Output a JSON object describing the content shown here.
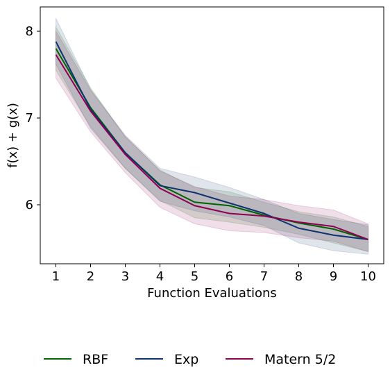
{
  "chart_data": {
    "type": "line",
    "xlabel": "Function Evaluations",
    "ylabel": "f(x) + g(x)",
    "x": [
      1,
      2,
      3,
      4,
      5,
      6,
      7,
      8,
      9,
      10
    ],
    "xticks": [
      "1",
      "2",
      "3",
      "4",
      "5",
      "6",
      "7",
      "8",
      "9",
      "10"
    ],
    "yticks": [
      "6",
      "7",
      "8"
    ],
    "ytick_values": [
      6,
      7,
      8
    ],
    "xlim": [
      0.55,
      10.45
    ],
    "ylim": [
      5.32,
      8.28
    ],
    "grid": false,
    "legend_position": "bottom",
    "series": [
      {
        "name": "RBF",
        "color": "#006400",
        "values": [
          7.8,
          7.12,
          6.6,
          6.23,
          6.03,
          5.99,
          5.88,
          5.79,
          5.72,
          5.6
        ],
        "lower": [
          7.55,
          6.9,
          6.42,
          6.05,
          5.85,
          5.8,
          5.74,
          5.66,
          5.56,
          5.46
        ],
        "upper": [
          8.05,
          7.35,
          6.78,
          6.4,
          6.2,
          6.15,
          6.03,
          5.92,
          5.86,
          5.75
        ]
      },
      {
        "name": "Exp",
        "color": "#0d3370",
        "values": [
          7.88,
          7.1,
          6.6,
          6.22,
          6.14,
          6.02,
          5.9,
          5.73,
          5.65,
          5.6
        ],
        "lower": [
          7.62,
          6.88,
          6.42,
          6.04,
          5.93,
          5.86,
          5.76,
          5.56,
          5.47,
          5.43
        ],
        "upper": [
          8.15,
          7.33,
          6.8,
          6.42,
          6.32,
          6.2,
          6.06,
          5.9,
          5.83,
          5.77
        ]
      },
      {
        "name": "Matern 5/2",
        "color": "#8e0050",
        "values": [
          7.73,
          7.08,
          6.58,
          6.19,
          5.99,
          5.9,
          5.87,
          5.8,
          5.75,
          5.6
        ],
        "lower": [
          7.46,
          6.84,
          6.37,
          5.97,
          5.78,
          5.7,
          5.68,
          5.62,
          5.58,
          5.46
        ],
        "upper": [
          8.0,
          7.32,
          6.79,
          6.39,
          6.21,
          6.1,
          6.06,
          5.99,
          5.94,
          5.78
        ]
      }
    ]
  }
}
